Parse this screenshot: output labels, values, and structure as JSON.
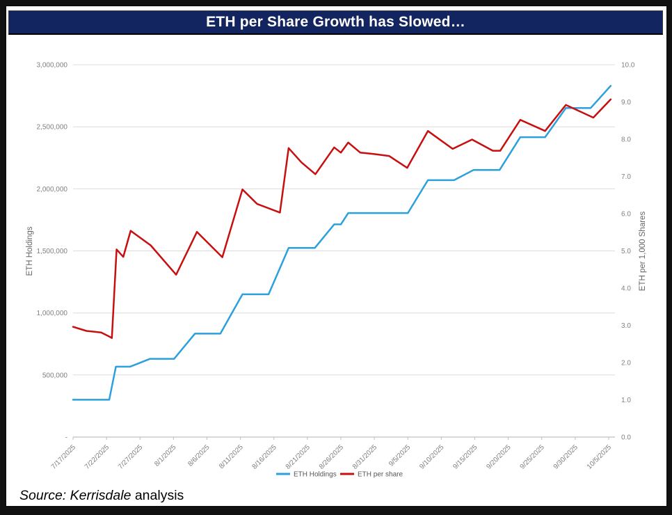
{
  "title": "ETH per Share Growth has Slowed…",
  "source": {
    "italic_part": "Source: Kerrisdale",
    "regular_part": " analysis"
  },
  "colors": {
    "frame_background": "#111111",
    "page_background": "#ffffff",
    "title_bar": "#132560",
    "title_text": "#ffffff",
    "holdings_line": "#2BA0DC",
    "per_share_line": "#C70F0F",
    "gridline": "#DCDCDC",
    "axis_line": "#BFBFBF",
    "tick_text": "#808080",
    "axis_title_text": "#666666",
    "legend_text": "#555555"
  },
  "chart_data": {
    "type": "line",
    "title": "ETH per Share Growth has Slowed…",
    "grid": "horizontal",
    "legend_position": "bottom",
    "x_axis": {
      "start_date": "7/17/2025",
      "end_date": "10/5/2025",
      "tick_labels": [
        "7/17/2025",
        "7/22/2025",
        "7/27/2025",
        "8/1/2025",
        "8/6/2025",
        "8/11/2025",
        "8/16/2025",
        "8/21/2025",
        "8/26/2025",
        "8/31/2025",
        "9/5/2025",
        "9/10/2025",
        "9/15/2025",
        "9/20/2025",
        "9/25/2025",
        "9/30/2025",
        "10/5/2025"
      ],
      "tick_day_offsets": [
        0,
        5,
        10,
        15,
        20,
        25,
        30,
        35,
        40,
        45,
        50,
        55,
        60,
        65,
        70,
        75,
        80
      ]
    },
    "y_axis_left": {
      "title": "ETH Holdings",
      "min": 0,
      "max": 3000000,
      "tick_step": 500000,
      "tick_labels": [
        "3,000,000",
        "2,500,000",
        "2,000,000",
        "1,500,000",
        "1,000,000",
        "500,000",
        "-"
      ]
    },
    "y_axis_right": {
      "title": "ETH per 1,000 Shares",
      "min": 0,
      "max": 10,
      "tick_step": 1,
      "tick_labels": [
        "10.0",
        "9.0",
        "8.0",
        "7.0",
        "6.0",
        "5.0",
        "4.0",
        "3.0",
        "2.0",
        "1.0",
        "0.0"
      ]
    },
    "series": [
      {
        "name": "ETH Holdings",
        "axis": "left",
        "color": "#2BA0DC",
        "points_day_value": [
          [
            0,
            300657
          ],
          [
            5.4,
            300657
          ],
          [
            6.4,
            566776
          ],
          [
            8.5,
            566776
          ],
          [
            9.7,
            592000
          ],
          [
            11.5,
            630000
          ],
          [
            15.1,
            630000
          ],
          [
            18.2,
            833137
          ],
          [
            22.0,
            833137
          ],
          [
            25.3,
            1150263
          ],
          [
            29.2,
            1150263
          ],
          [
            32.2,
            1523373
          ],
          [
            36.1,
            1523373
          ],
          [
            39.0,
            1713899
          ],
          [
            40.0,
            1713899
          ],
          [
            41.1,
            1805000
          ],
          [
            50.0,
            1805000
          ],
          [
            53.0,
            2069443
          ],
          [
            56.9,
            2069443
          ],
          [
            59.8,
            2151676
          ],
          [
            63.7,
            2151676
          ],
          [
            66.8,
            2416054
          ],
          [
            70.5,
            2416054
          ],
          [
            73.6,
            2650900
          ],
          [
            77.3,
            2650900
          ],
          [
            80.3,
            2830000
          ]
        ]
      },
      {
        "name": "ETH per share",
        "axis": "right",
        "color": "#C70F0F",
        "points_day_value": [
          [
            0,
            2.96
          ],
          [
            2.0,
            2.85
          ],
          [
            4.2,
            2.81
          ],
          [
            5.3,
            2.71
          ],
          [
            5.8,
            2.66
          ],
          [
            6.5,
            5.04
          ],
          [
            7.5,
            4.84
          ],
          [
            8.6,
            5.54
          ],
          [
            11.6,
            5.15
          ],
          [
            15.4,
            4.36
          ],
          [
            18.5,
            5.51
          ],
          [
            22.3,
            4.83
          ],
          [
            25.3,
            6.65
          ],
          [
            27.5,
            6.26
          ],
          [
            30.9,
            6.03
          ],
          [
            32.2,
            7.76
          ],
          [
            34.1,
            7.38
          ],
          [
            36.2,
            7.06
          ],
          [
            39.0,
            7.78
          ],
          [
            40.0,
            7.64
          ],
          [
            41.1,
            7.91
          ],
          [
            42.9,
            7.64
          ],
          [
            45.0,
            7.6
          ],
          [
            47.2,
            7.55
          ],
          [
            49.9,
            7.23
          ],
          [
            53.0,
            8.22
          ],
          [
            56.7,
            7.74
          ],
          [
            59.6,
            7.99
          ],
          [
            62.7,
            7.69
          ],
          [
            63.8,
            7.69
          ],
          [
            66.8,
            8.52
          ],
          [
            70.5,
            8.22
          ],
          [
            73.6,
            8.92
          ],
          [
            77.7,
            8.58
          ],
          [
            80.3,
            9.07
          ]
        ]
      }
    ]
  }
}
